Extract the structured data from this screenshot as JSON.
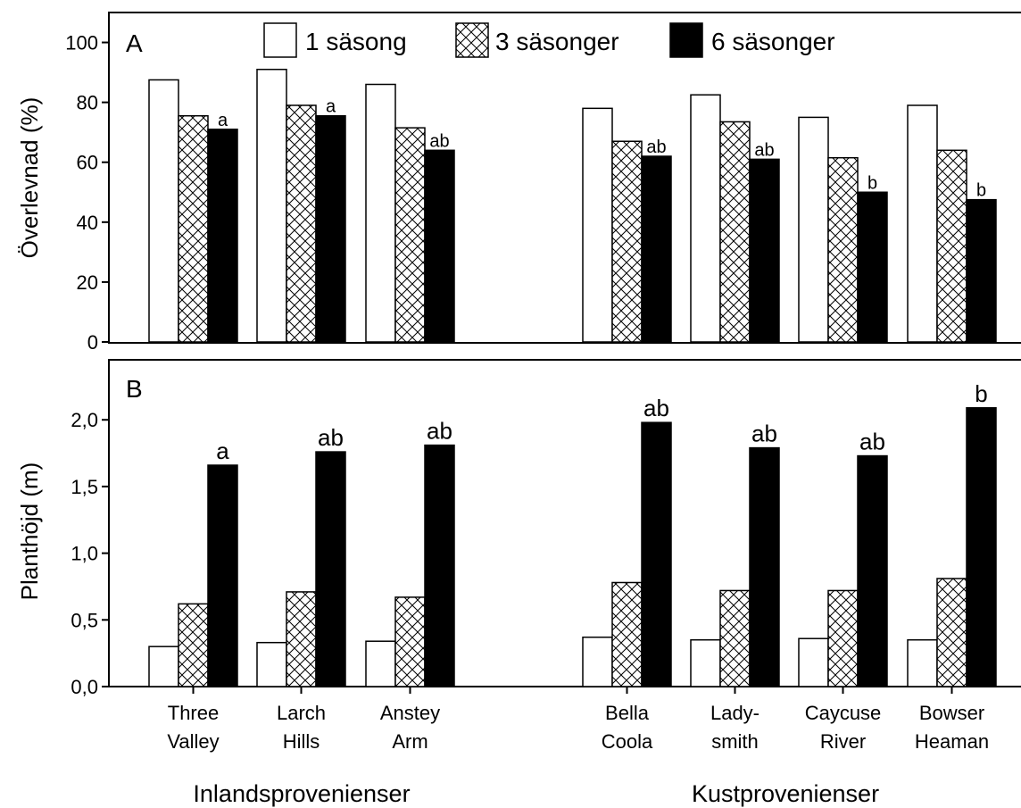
{
  "chart_data": [
    {
      "type": "bar",
      "panel": "A",
      "ylabel": "Överlevnad (%)",
      "ylim": [
        0,
        110
      ],
      "yticks": [
        "0",
        "20",
        "40",
        "60",
        "80",
        "100"
      ],
      "categories": [
        "Three Valley",
        "Larch Hills",
        "Anstey Arm",
        "Bella Coola",
        "Lady-smith",
        "Caycuse River",
        "Bowser Heaman"
      ],
      "series": [
        {
          "name": "1 säsong",
          "fill": "white",
          "values": [
            87.5,
            91,
            86,
            78,
            82.5,
            75,
            79
          ]
        },
        {
          "name": "3 säsonger",
          "fill": "crosshatch",
          "values": [
            75.5,
            79,
            71.5,
            67,
            73.5,
            61.5,
            64
          ]
        },
        {
          "name": "6 säsonger",
          "fill": "black",
          "values": [
            71,
            75.5,
            64,
            62,
            61,
            50,
            47.5
          ]
        }
      ],
      "significance": [
        "a",
        "a",
        "ab",
        "ab",
        "ab",
        "b",
        "b"
      ],
      "legend": "top"
    },
    {
      "type": "bar",
      "panel": "B",
      "ylabel": "Planthöjd (m)",
      "ylim": [
        0,
        2.45
      ],
      "yticks": [
        "0,0",
        "0,5",
        "1,0",
        "1,5",
        "2,0"
      ],
      "categories": [
        "Three Valley",
        "Larch Hills",
        "Anstey Arm",
        "Bella Coola",
        "Lady-smith",
        "Caycuse River",
        "Bowser Heaman"
      ],
      "series": [
        {
          "name": "1 säsong",
          "fill": "white",
          "values": [
            0.3,
            0.33,
            0.34,
            0.37,
            0.35,
            0.36,
            0.35
          ]
        },
        {
          "name": "3 säsonger",
          "fill": "crosshatch",
          "values": [
            0.62,
            0.71,
            0.67,
            0.78,
            0.72,
            0.72,
            0.81
          ]
        },
        {
          "name": "6 säsonger",
          "fill": "black",
          "values": [
            1.66,
            1.76,
            1.81,
            1.98,
            1.79,
            1.73,
            2.09
          ]
        }
      ],
      "significance": [
        "a",
        "ab",
        "ab",
        "ab",
        "ab",
        "ab",
        "b"
      ]
    }
  ],
  "category_labels": [
    [
      "Three",
      "Valley"
    ],
    [
      "Larch",
      "Hills"
    ],
    [
      "Anstey",
      "Arm"
    ],
    [
      "Bella",
      "Coola"
    ],
    [
      "Lady-",
      "smith"
    ],
    [
      "Caycuse",
      "River"
    ],
    [
      "Bowser",
      "Heaman"
    ]
  ],
  "groups": [
    "Inlandsprovenienser",
    "Kustprovenienser"
  ]
}
